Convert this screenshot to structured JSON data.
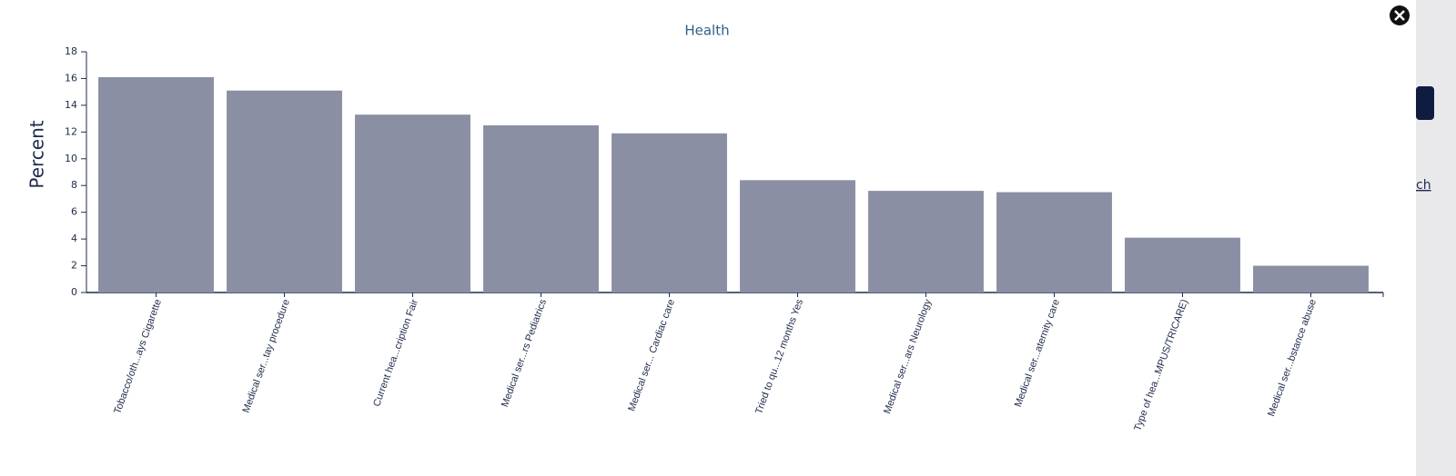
{
  "chart_data": {
    "type": "bar",
    "title": "Health",
    "y_label": "Percent",
    "categories": [
      "Tobacco/oth...ays Cigarette",
      "Medical ser...tay procedure",
      "Current hea...cription Fair",
      "Medical ser...rs Pediatrics",
      "Medical ser... Cardiac care",
      "Tried to qu...12 months Yes",
      "Medical ser...ars Neurology",
      "Medical ser...aternity care",
      "Type of hea...MPUS/TRICARE)",
      "Medical ser...bstance abuse"
    ],
    "values": [
      16.1,
      15.1,
      13.3,
      12.5,
      11.9,
      8.4,
      7.6,
      7.5,
      4.1,
      2.0
    ],
    "color": "#8a8fa3",
    "ylim": [
      0,
      18
    ],
    "yticks": [
      0,
      2,
      4,
      6,
      8,
      10,
      12,
      14,
      16,
      18
    ],
    "grid": false
  },
  "side_link": "ch"
}
